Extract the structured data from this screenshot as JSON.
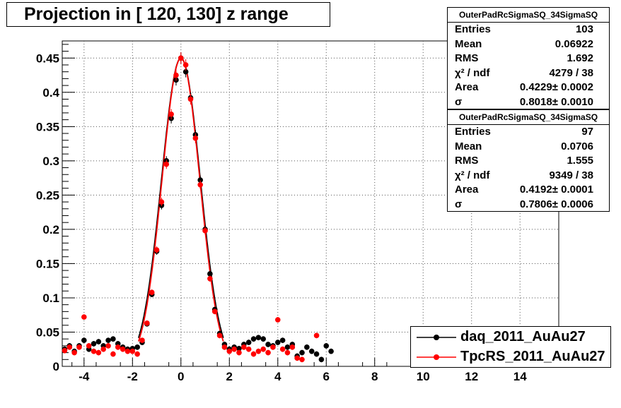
{
  "title": "Projection in [ 120, 130] z range",
  "chart_data": {
    "type": "scatter",
    "xlim": [
      -4.9,
      15.6
    ],
    "ylim": [
      0,
      0.475
    ],
    "x_ticks": [
      -4,
      -2,
      0,
      2,
      4,
      6,
      8,
      10,
      12,
      14
    ],
    "x_tick_labels": [
      "-4",
      "-2",
      "0",
      "2",
      "4",
      "6",
      "8",
      "10",
      "12",
      "14"
    ],
    "y_ticks": [
      0,
      0.05,
      0.1,
      0.15,
      0.2,
      0.25,
      0.3,
      0.35,
      0.4,
      0.45
    ],
    "y_tick_labels": [
      "0",
      "0.05",
      "0.1",
      "0.15",
      "0.2",
      "0.25",
      "0.3",
      "0.35",
      "0.4",
      "0.45"
    ],
    "grid": true,
    "series": [
      {
        "name": "daq_2011_AuAu27",
        "color": "#000000",
        "fit_sigma": 0.8018,
        "points": [
          [
            -4.8,
            0.025
          ],
          [
            -4.6,
            0.03
          ],
          [
            -4.4,
            0.022
          ],
          [
            -4.2,
            0.03
          ],
          [
            -4.0,
            0.038
          ],
          [
            -3.8,
            0.025
          ],
          [
            -3.6,
            0.033
          ],
          [
            -3.4,
            0.036
          ],
          [
            -3.2,
            0.03
          ],
          [
            -3.0,
            0.038
          ],
          [
            -2.8,
            0.04
          ],
          [
            -2.6,
            0.033
          ],
          [
            -2.4,
            0.028
          ],
          [
            -2.2,
            0.025
          ],
          [
            -2.0,
            0.026
          ],
          [
            -1.8,
            0.028
          ],
          [
            -1.6,
            0.035
          ],
          [
            -1.4,
            0.062
          ],
          [
            -1.2,
            0.105
          ],
          [
            -1.0,
            0.168
          ],
          [
            -0.8,
            0.235
          ],
          [
            -0.6,
            0.3
          ],
          [
            -0.4,
            0.362
          ],
          [
            -0.2,
            0.418
          ],
          [
            0.0,
            0.45
          ],
          [
            0.2,
            0.43
          ],
          [
            0.4,
            0.392
          ],
          [
            0.6,
            0.338
          ],
          [
            0.8,
            0.272
          ],
          [
            1.0,
            0.2
          ],
          [
            1.2,
            0.135
          ],
          [
            1.4,
            0.083
          ],
          [
            1.6,
            0.048
          ],
          [
            1.8,
            0.032
          ],
          [
            2.0,
            0.025
          ],
          [
            2.2,
            0.028
          ],
          [
            2.4,
            0.026
          ],
          [
            2.6,
            0.032
          ],
          [
            2.8,
            0.035
          ],
          [
            3.0,
            0.04
          ],
          [
            3.2,
            0.042
          ],
          [
            3.4,
            0.04
          ],
          [
            3.6,
            0.032
          ],
          [
            3.8,
            0.03
          ],
          [
            4.0,
            0.035
          ],
          [
            4.2,
            0.038
          ],
          [
            4.4,
            0.028
          ],
          [
            4.6,
            0.032
          ],
          [
            4.8,
            0.015
          ],
          [
            5.0,
            0.02
          ],
          [
            5.2,
            0.028
          ],
          [
            5.4,
            0.022
          ],
          [
            5.6,
            0.018
          ],
          [
            5.8,
            0.01
          ],
          [
            6.0,
            0.03
          ],
          [
            6.2,
            0.022
          ]
        ]
      },
      {
        "name": "TpcRS_2011_AuAu27",
        "color": "#ff0000",
        "fit_sigma": 0.7806,
        "points": [
          [
            -4.8,
            0.023
          ],
          [
            -4.6,
            0.028
          ],
          [
            -4.4,
            0.02
          ],
          [
            -4.2,
            0.028
          ],
          [
            -4.0,
            0.072
          ],
          [
            -3.8,
            0.03
          ],
          [
            -3.6,
            0.022
          ],
          [
            -3.4,
            0.02
          ],
          [
            -3.2,
            0.025
          ],
          [
            -3.0,
            0.03
          ],
          [
            -2.8,
            0.018
          ],
          [
            -2.6,
            0.028
          ],
          [
            -2.4,
            0.025
          ],
          [
            -2.2,
            0.022
          ],
          [
            -2.0,
            0.022
          ],
          [
            -1.8,
            0.018
          ],
          [
            -1.6,
            0.038
          ],
          [
            -1.4,
            0.063
          ],
          [
            -1.2,
            0.108
          ],
          [
            -1.0,
            0.17
          ],
          [
            -0.8,
            0.24
          ],
          [
            -0.6,
            0.295
          ],
          [
            -0.4,
            0.368
          ],
          [
            -0.2,
            0.425
          ],
          [
            0.0,
            0.45
          ],
          [
            0.2,
            0.44
          ],
          [
            0.4,
            0.39
          ],
          [
            0.6,
            0.333
          ],
          [
            0.8,
            0.265
          ],
          [
            1.0,
            0.198
          ],
          [
            1.2,
            0.128
          ],
          [
            1.4,
            0.08
          ],
          [
            1.6,
            0.045
          ],
          [
            1.8,
            0.028
          ],
          [
            2.0,
            0.022
          ],
          [
            2.2,
            0.025
          ],
          [
            2.4,
            0.02
          ],
          [
            2.6,
            0.028
          ],
          [
            2.8,
            0.025
          ],
          [
            3.0,
            0.018
          ],
          [
            3.2,
            0.022
          ],
          [
            3.4,
            0.025
          ],
          [
            3.6,
            0.02
          ],
          [
            3.8,
            0.028
          ],
          [
            4.0,
            0.068
          ],
          [
            4.2,
            0.025
          ],
          [
            4.4,
            0.02
          ],
          [
            4.6,
            0.028
          ],
          [
            4.8,
            0.012
          ],
          [
            5.0,
            0.01
          ],
          [
            5.6,
            0.045
          ]
        ]
      }
    ]
  },
  "stats_boxes": [
    {
      "header": "OuterPadRcSigmaSQ_34SigmaSQ",
      "rows": [
        {
          "key": "Entries",
          "value": "103"
        },
        {
          "key": "Mean",
          "value": "0.06922"
        },
        {
          "key": "RMS",
          "value": "1.692"
        },
        {
          "key": "χ² / ndf",
          "value": "4279 / 38"
        },
        {
          "key": "Area",
          "value": "0.4229± 0.0002"
        },
        {
          "key": "σ",
          "value": "0.8018± 0.0010"
        }
      ]
    },
    {
      "header": "OuterPadRcSigmaSQ_34SigmaSQ",
      "rows": [
        {
          "key": "Entries",
          "value": "97"
        },
        {
          "key": "Mean",
          "value": "0.0706"
        },
        {
          "key": "RMS",
          "value": "1.555"
        },
        {
          "key": "χ² / ndf",
          "value": "9349 / 38"
        },
        {
          "key": "Area",
          "value": "0.4192± 0.0001"
        },
        {
          "key": "σ",
          "value": "0.7806± 0.0006"
        }
      ]
    }
  ],
  "legend": [
    {
      "label": "daq_2011_AuAu27",
      "color": "#000000"
    },
    {
      "label": "TpcRS_2011_AuAu27",
      "color": "#ff0000"
    }
  ]
}
